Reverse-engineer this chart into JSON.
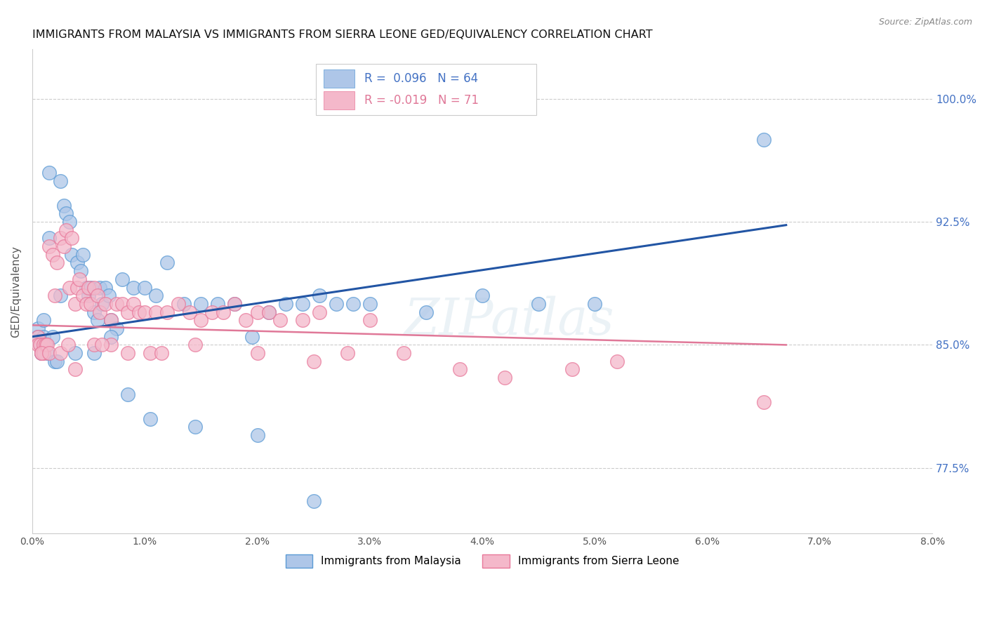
{
  "title": "IMMIGRANTS FROM MALAYSIA VS IMMIGRANTS FROM SIERRA LEONE GED/EQUIVALENCY CORRELATION CHART",
  "source": "Source: ZipAtlas.com",
  "ylabel": "GED/Equivalency",
  "xmin": 0.0,
  "xmax": 8.0,
  "ymin": 73.5,
  "ymax": 103.0,
  "malaysia_color": "#aec6e8",
  "malaysia_edge_color": "#5b9bd5",
  "sierra_leone_color": "#f4b8ca",
  "sierra_leone_edge_color": "#e8789a",
  "malaysia_R": 0.096,
  "malaysia_N": 64,
  "sierra_leone_R": -0.019,
  "sierra_leone_N": 71,
  "trend_malaysia_color": "#2255a4",
  "trend_sierra_leone_color": "#e07898",
  "watermark": "ZIPatlas",
  "malaysia_x": [
    0.05,
    0.05,
    0.07,
    0.08,
    0.1,
    0.1,
    0.12,
    0.13,
    0.15,
    0.18,
    0.2,
    0.22,
    0.25,
    0.28,
    0.3,
    0.33,
    0.35,
    0.4,
    0.43,
    0.45,
    0.48,
    0.5,
    0.52,
    0.55,
    0.58,
    0.6,
    0.62,
    0.65,
    0.68,
    0.7,
    0.75,
    0.8,
    0.9,
    1.0,
    1.1,
    1.2,
    1.35,
    1.5,
    1.65,
    1.8,
    1.95,
    2.1,
    2.25,
    2.4,
    2.55,
    2.7,
    2.85,
    3.0,
    3.5,
    4.0,
    4.5,
    5.0,
    6.5,
    0.08,
    0.15,
    0.25,
    0.38,
    0.55,
    0.7,
    0.85,
    1.05,
    1.45,
    2.0,
    2.5
  ],
  "malaysia_y": [
    86.0,
    85.5,
    85.0,
    84.5,
    86.5,
    85.5,
    85.0,
    84.5,
    91.5,
    85.5,
    84.0,
    84.0,
    88.0,
    93.5,
    93.0,
    92.5,
    90.5,
    90.0,
    89.5,
    90.5,
    88.5,
    88.0,
    88.5,
    87.0,
    86.5,
    88.5,
    87.5,
    88.5,
    88.0,
    86.5,
    86.0,
    89.0,
    88.5,
    88.5,
    88.0,
    90.0,
    87.5,
    87.5,
    87.5,
    87.5,
    85.5,
    87.0,
    87.5,
    87.5,
    88.0,
    87.5,
    87.5,
    87.5,
    87.0,
    88.0,
    87.5,
    87.5,
    97.5,
    84.5,
    95.5,
    95.0,
    84.5,
    84.5,
    85.5,
    82.0,
    80.5,
    80.0,
    79.5,
    75.5
  ],
  "sierra_leone_x": [
    0.05,
    0.05,
    0.07,
    0.08,
    0.1,
    0.1,
    0.12,
    0.13,
    0.15,
    0.18,
    0.2,
    0.22,
    0.25,
    0.28,
    0.3,
    0.33,
    0.35,
    0.38,
    0.4,
    0.42,
    0.45,
    0.48,
    0.5,
    0.52,
    0.55,
    0.58,
    0.6,
    0.65,
    0.7,
    0.75,
    0.8,
    0.85,
    0.9,
    0.95,
    1.0,
    1.1,
    1.2,
    1.3,
    1.4,
    1.5,
    1.6,
    1.7,
    1.8,
    1.9,
    2.0,
    2.1,
    2.2,
    2.4,
    2.55,
    2.8,
    3.0,
    3.3,
    3.8,
    4.2,
    4.8,
    5.2,
    6.5,
    0.08,
    0.15,
    0.25,
    0.38,
    0.55,
    0.7,
    0.85,
    1.05,
    1.45,
    2.0,
    2.5,
    0.32,
    0.62,
    1.15
  ],
  "sierra_leone_y": [
    85.5,
    85.0,
    85.0,
    84.5,
    85.0,
    84.5,
    85.0,
    85.0,
    91.0,
    90.5,
    88.0,
    90.0,
    91.5,
    91.0,
    92.0,
    88.5,
    91.5,
    87.5,
    88.5,
    89.0,
    88.0,
    87.5,
    88.5,
    87.5,
    88.5,
    88.0,
    87.0,
    87.5,
    86.5,
    87.5,
    87.5,
    87.0,
    87.5,
    87.0,
    87.0,
    87.0,
    87.0,
    87.5,
    87.0,
    86.5,
    87.0,
    87.0,
    87.5,
    86.5,
    87.0,
    87.0,
    86.5,
    86.5,
    87.0,
    84.5,
    86.5,
    84.5,
    83.5,
    83.0,
    83.5,
    84.0,
    81.5,
    84.5,
    84.5,
    84.5,
    83.5,
    85.0,
    85.0,
    84.5,
    84.5,
    85.0,
    84.5,
    84.0,
    85.0,
    85.0,
    84.5
  ],
  "trend_malaysia_x0": 0.0,
  "trend_malaysia_y0": 85.5,
  "trend_malaysia_x1": 6.7,
  "trend_malaysia_y1": 92.3,
  "trend_sierra_leone_x0": 0.0,
  "trend_sierra_leone_y0": 86.2,
  "trend_sierra_leone_x1": 6.7,
  "trend_sierra_leone_y1": 85.0
}
